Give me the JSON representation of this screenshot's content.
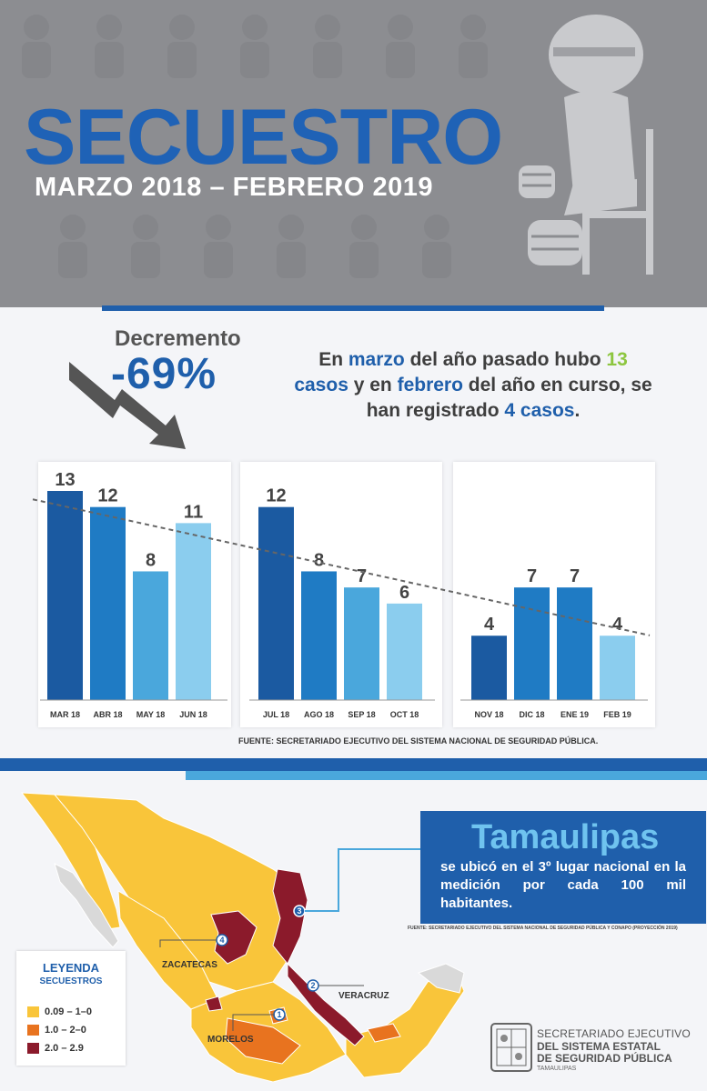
{
  "header": {
    "title": "SECUESTRO",
    "subtitle": "MARZO 2018  – FEBRERO 2019"
  },
  "decremento": {
    "label": "Decremento",
    "value": "-69%"
  },
  "summary": {
    "part1": "En ",
    "part2": "marzo",
    "part3": " del año pasado hubo ",
    "part4": "13",
    "part5": "casos",
    "part6": " y en ",
    "part7": "febrero",
    "part8": " del año en curso, se han registrado ",
    "part9": "4 casos",
    "part10": "."
  },
  "chart_data": {
    "type": "bar",
    "categories": [
      "MAR 18",
      "ABR 18",
      "MAY 18",
      "JUN 18",
      "JUL 18",
      "AGO 18",
      "SEP 18",
      "OCT 18",
      "NOV 18",
      "DIC 18",
      "ENE 19",
      "FEB 19"
    ],
    "values": [
      13,
      12,
      8,
      11,
      12,
      8,
      7,
      6,
      4,
      7,
      7,
      4
    ],
    "colors": [
      "#1b5aa1",
      "#1f7bc4",
      "#4aa7dc",
      "#8bcdee",
      "#1b5aa1",
      "#1f7bc4",
      "#4aa7dc",
      "#8bcdee",
      "#1b5aa1",
      "#1f7bc4",
      "#1f7bc4",
      "#8bcdee"
    ],
    "groups": [
      {
        "categories": [
          "MAR 18",
          "ABR 18",
          "MAY 18",
          "JUN 18"
        ]
      },
      {
        "categories": [
          "JUL 18",
          "AGO 18",
          "SEP 18",
          "OCT 18"
        ]
      },
      {
        "categories": [
          "NOV 18",
          "DIC 18",
          "ENE 19",
          "FEB 19"
        ]
      }
    ],
    "trendline": true,
    "ylim": [
      0,
      13
    ]
  },
  "fuente1": "FUENTE: SECRETARIADO EJECUTIVO DEL SISTEMA NACIONAL DE SEGURIDAD PÚBLICA.",
  "tamaulipas": {
    "title": "Tamaulipas",
    "text": "se ubicó en el 3º lugar nacional en la medición por cada 100 mil habitantes."
  },
  "fuente2": "FUENTE: SECRETARIADO EJECUTIVO DEL SISTEMA NACIONAL DE SEGURIDAD PÚBLICA Y CONAPO (PROYECCIÓN 2019)",
  "map": {
    "labels": [
      "ZACATECAS",
      "VERACRUZ",
      "MORELOS"
    ],
    "ranks": [
      "1",
      "2",
      "3",
      "4"
    ]
  },
  "legend": {
    "title": "LEYENDA",
    "subtitle": "SECUESTROS",
    "items": [
      {
        "label": "0.09 – 1–0",
        "color": "#f9c53a"
      },
      {
        "label": "1.0 – 2–0",
        "color": "#e8731f"
      },
      {
        "label": "2.0 – 2.9",
        "color": "#8b1a2b"
      }
    ]
  },
  "logo": {
    "line1": "SECRETARIADO EJECUTIVO",
    "line2": "DEL SISTEMA ESTATAL",
    "line3": "DE SEGURIDAD PÚBLICA",
    "line4": "TAMAULIPAS"
  }
}
